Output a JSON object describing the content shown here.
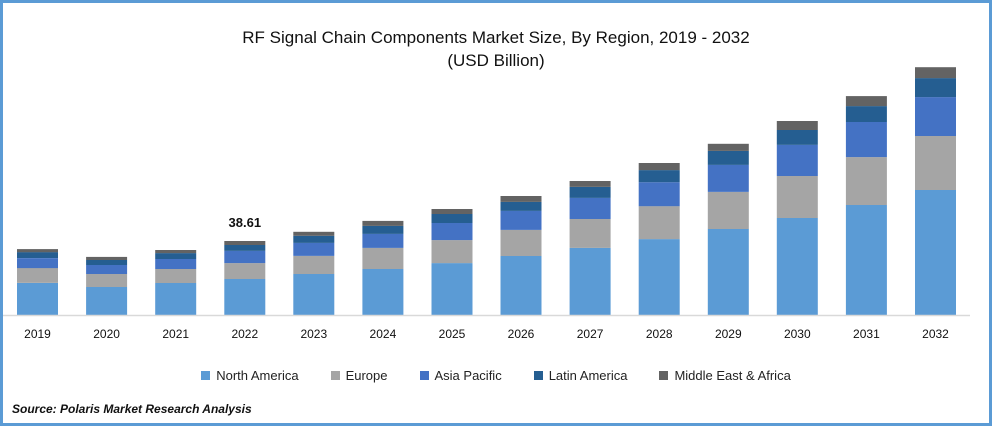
{
  "chart_data": {
    "type": "bar",
    "stacked": true,
    "title": "RF Signal Chain Components Market Size, By Region, 2019 - 2032",
    "subtitle": "(USD Billion)",
    "xlabel": "",
    "ylabel": "",
    "ylim": [
      0,
      140
    ],
    "grid": false,
    "legend_position": "bottom",
    "categories": [
      "2019",
      "2020",
      "2021",
      "2022",
      "2023",
      "2024",
      "2025",
      "2026",
      "2027",
      "2028",
      "2029",
      "2030",
      "2031",
      "2032"
    ],
    "series": [
      {
        "name": "North America",
        "color": "#5b9bd5",
        "values": [
          16.7,
          14.6,
          16.7,
          18.8,
          21.4,
          24.0,
          27.1,
          30.8,
          35.0,
          39.6,
          44.9,
          50.6,
          57.4,
          65.2
        ]
      },
      {
        "name": "Europe",
        "color": "#a5a5a5",
        "values": [
          7.8,
          6.8,
          7.3,
          8.3,
          9.4,
          11.0,
          12.0,
          13.6,
          15.1,
          17.2,
          19.3,
          21.9,
          25.0,
          28.2
        ]
      },
      {
        "name": "Asia Pacific",
        "color": "#4472c4",
        "values": [
          5.2,
          4.7,
          5.2,
          6.3,
          6.8,
          7.3,
          8.9,
          9.9,
          11.0,
          12.5,
          14.1,
          16.2,
          18.3,
          20.3
        ]
      },
      {
        "name": "Latin America",
        "color": "#255e91",
        "values": [
          3.1,
          2.6,
          3.1,
          3.1,
          3.7,
          4.2,
          4.7,
          4.7,
          5.7,
          6.3,
          7.3,
          7.8,
          8.3,
          9.9
        ]
      },
      {
        "name": "Middle East & Africa",
        "color": "#636363",
        "values": [
          1.6,
          1.6,
          1.6,
          2.1,
          2.1,
          2.6,
          2.6,
          3.1,
          3.1,
          3.7,
          3.7,
          4.7,
          5.2,
          5.7
        ]
      }
    ],
    "annotations": [
      {
        "category": "2022",
        "text": "38.61",
        "value": 38.61
      }
    ]
  },
  "source": "Source: Polaris  Market Research Analysis",
  "frame_color": "#5b9bd5"
}
